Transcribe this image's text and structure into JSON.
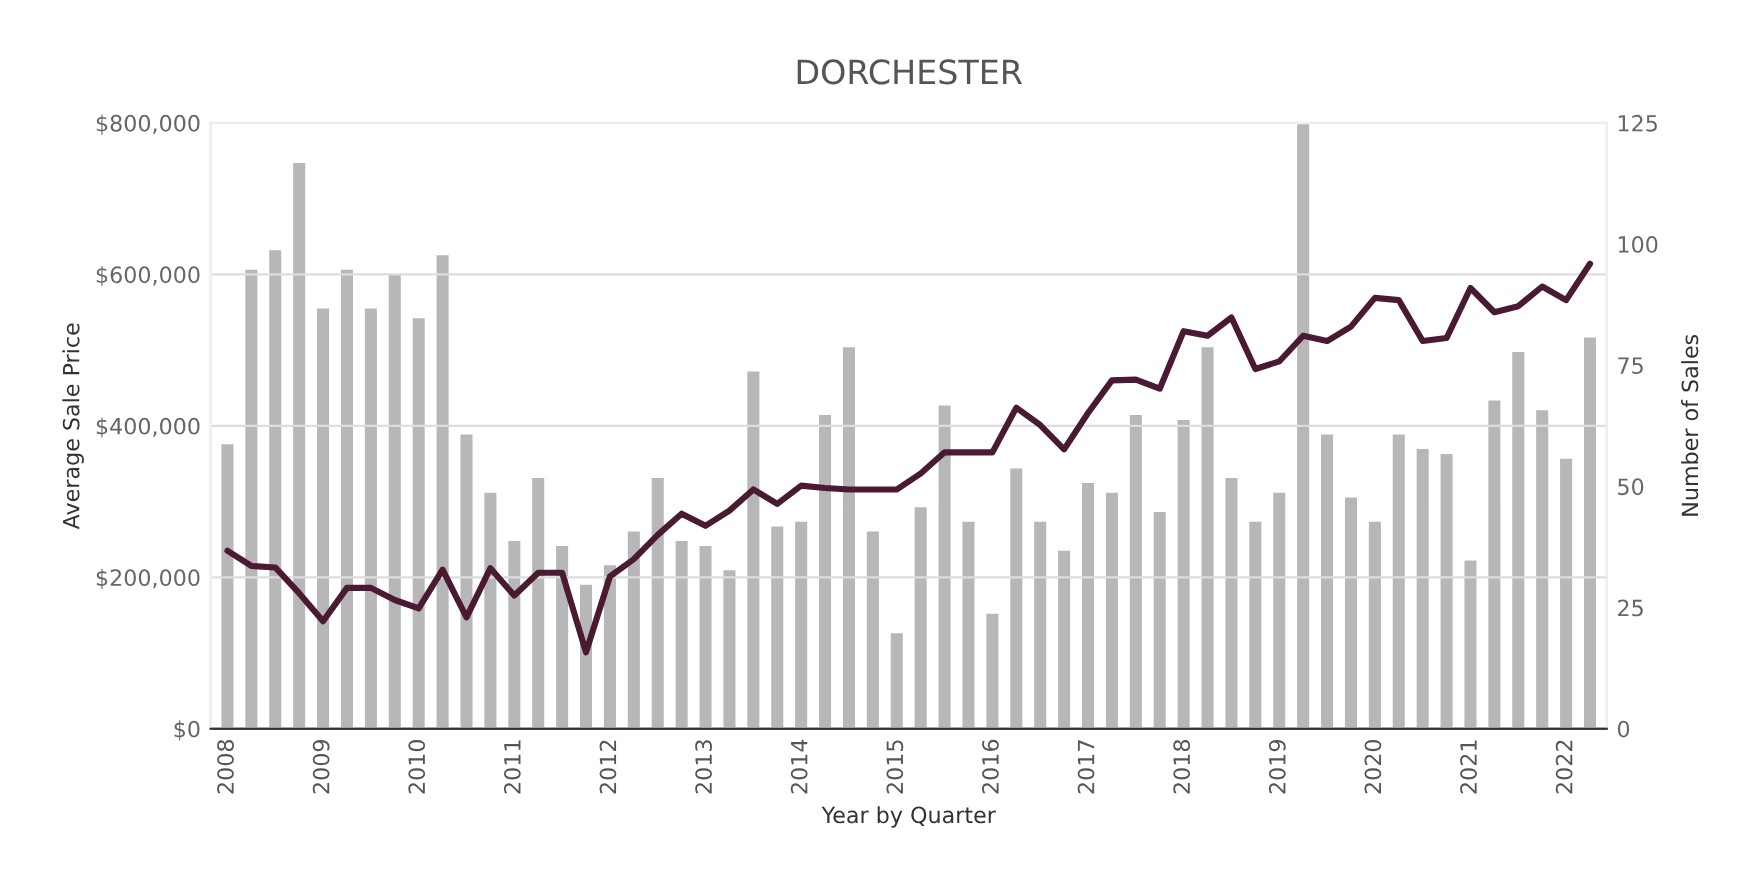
{
  "chart_data": {
    "type": "bar",
    "title": "DORCHESTER",
    "xlabel": "Year by Quarter",
    "ylabel": "Average Sale Price",
    "y2label": "Number of Sales",
    "categories": [
      "2008",
      null,
      null,
      null,
      "2009",
      null,
      null,
      null,
      "2010",
      null,
      null,
      null,
      "2011",
      null,
      null,
      null,
      "2012",
      null,
      null,
      null,
      "2013",
      null,
      null,
      null,
      "2014",
      null,
      null,
      null,
      "2015",
      null,
      null,
      null,
      "2016",
      null,
      null,
      null,
      "2017",
      null,
      null,
      null,
      "2018",
      null,
      null,
      null,
      "2019",
      null,
      null,
      null,
      "2020",
      null,
      null,
      null,
      "2021",
      null,
      null,
      null,
      "2022",
      null
    ],
    "series": [
      {
        "axis": "y2",
        "color": "#b7b7b7",
        "values": [
          59,
          95,
          99,
          117,
          87,
          95,
          87,
          94,
          85,
          98,
          61,
          49,
          39,
          52,
          38,
          30,
          34,
          41,
          52,
          39,
          38,
          33,
          74,
          42,
          43,
          65,
          79,
          41,
          20,
          46,
          67,
          43,
          24,
          54,
          43,
          37,
          51,
          49,
          65,
          45,
          64,
          79,
          52,
          43,
          49,
          125,
          61,
          48,
          43,
          61,
          58,
          57,
          35,
          68,
          78,
          66,
          56,
          81
        ]
      },
      {
        "type": "line",
        "axis": "y",
        "color": "#4a1a33",
        "values": [
          235000,
          215000,
          213000,
          179000,
          142000,
          186000,
          186000,
          170000,
          159000,
          210000,
          147000,
          212000,
          176000,
          206000,
          206000,
          101000,
          201000,
          224000,
          256000,
          284000,
          268000,
          288000,
          316000,
          297000,
          321000,
          318000,
          316000,
          316000,
          316000,
          337000,
          365000,
          365000,
          365000,
          424000,
          401000,
          369000,
          417000,
          460000,
          461000,
          449000,
          525000,
          519000,
          543000,
          475000,
          485000,
          519000,
          512000,
          531000,
          569000,
          566000,
          512000,
          516000,
          582000,
          550000,
          558000,
          584000,
          566000,
          614000
        ]
      }
    ],
    "ylim": [
      0,
      800000
    ],
    "yticks": [
      {
        "value": 0,
        "label": "$0"
      },
      {
        "value": 200000,
        "label": "$200,000"
      },
      {
        "value": 400000,
        "label": "$400,000"
      },
      {
        "value": 600000,
        "label": "$600,000"
      },
      {
        "value": 800000,
        "label": "$800,000"
      }
    ],
    "y2lim": [
      0,
      125
    ],
    "y2ticks": [
      0,
      25,
      50,
      75,
      100,
      125
    ],
    "grid": "y",
    "marker": "none",
    "line_style": "solid"
  }
}
